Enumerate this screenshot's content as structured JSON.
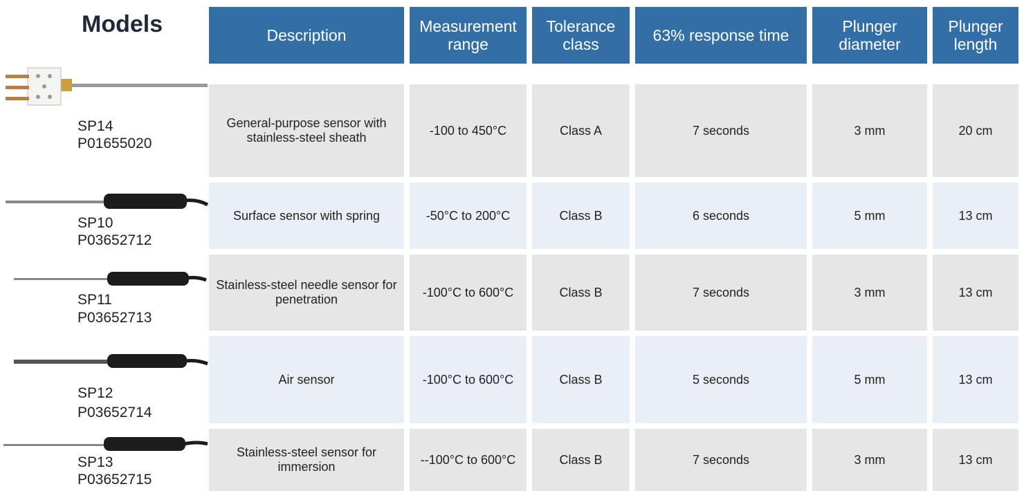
{
  "header": {
    "title": "Models",
    "columns": [
      "Description",
      "Measurement range",
      "Tolerance class",
      "63% response time",
      "Plunger diameter",
      "Plunger length"
    ]
  },
  "rows": [
    {
      "model": "SP14",
      "code": "P01655020",
      "cells": [
        "General-purpose sensor with stainless-steel sheath",
        "-100 to 450°C",
        "Class A",
        "7 seconds",
        "3 mm",
        "20 cm"
      ]
    },
    {
      "model": "SP10",
      "code": "P03652712",
      "cells": [
        "Surface sensor with spring",
        "-50°C to 200°C",
        "Class B",
        "6 seconds",
        "5 mm",
        "13 cm"
      ]
    },
    {
      "model": "SP11",
      "code": "P03652713",
      "cells": [
        "Stainless-steel needle sensor for penetration",
        "-100°C to 600°C",
        "Class B",
        "7 seconds",
        "3 mm",
        "13 cm"
      ]
    },
    {
      "model": "SP12",
      "code": "P03652714",
      "cells": [
        "Air sensor",
        "-100°C to 600°C",
        "Class B",
        "5 seconds",
        "5 mm",
        "13 cm"
      ]
    },
    {
      "model": "SP13",
      "code": "P03652715",
      "cells": [
        "Stainless-steel sensor for immersion",
        "--100°C to 600°C",
        "Class B",
        "7 seconds",
        "3 mm",
        "13 cm"
      ]
    }
  ]
}
